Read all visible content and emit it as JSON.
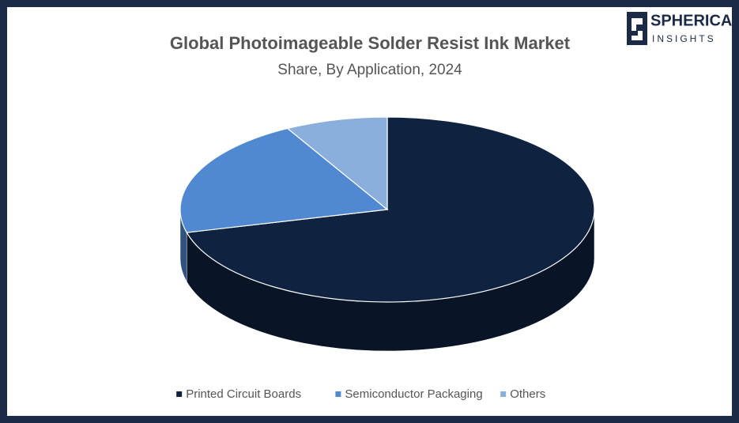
{
  "logo": {
    "line1": "SPHERICAL",
    "line2": "INSIGHTS"
  },
  "chart_data": {
    "type": "pie3d",
    "title": "Global Photoimageable Solder Resist Ink Market",
    "subtitle": "Share, By Application, 2024",
    "categories": [
      "Printed Circuit Boards",
      "Semiconductor Packaging",
      "Others"
    ],
    "values": [
      71,
      21,
      8
    ],
    "colors": [
      "#0f2341",
      "#5188d2",
      "#8aafdd"
    ],
    "legend": "bottom"
  }
}
